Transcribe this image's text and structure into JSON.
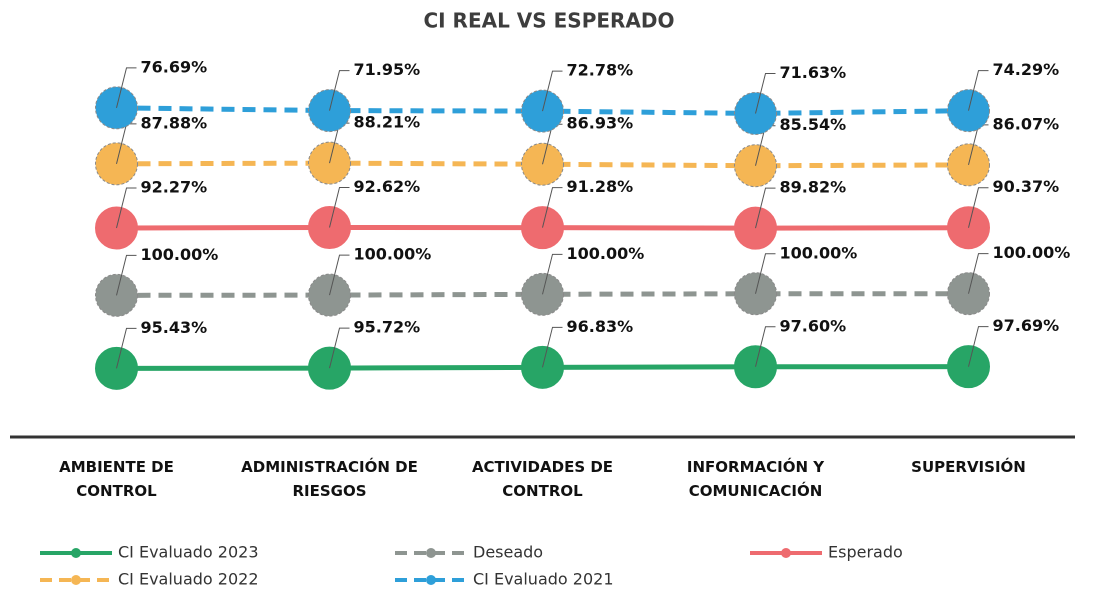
{
  "chart_data": {
    "type": "line",
    "stacked": true,
    "title": "CI REAL VS ESPERADO",
    "categories": [
      "AMBIENTE DE CONTROL",
      "ADMINISTRACIÓN DE RIESGOS",
      "ACTIVIDADES DE CONTROL",
      "INFORMACIÓN Y COMUNICACIÓN",
      "SUPERVISIÓN"
    ],
    "ylim": [
      0,
      500
    ],
    "legend": "bottom",
    "series": [
      {
        "name": "CI Evaluado 2023",
        "color": "#27a566",
        "dashed": false,
        "values": [
          95.43,
          95.72,
          96.83,
          97.6,
          97.69
        ],
        "value_labels": [
          "95.43%",
          "95.72%",
          "96.83%",
          "97.60%",
          "97.69%"
        ]
      },
      {
        "name": "Deseado",
        "color": "#8e9591",
        "dashed": true,
        "values": [
          100.0,
          100.0,
          100.0,
          100.0,
          100.0
        ],
        "value_labels": [
          "100.00%",
          "100.00%",
          "100.00%",
          "100.00%",
          "100.00%"
        ]
      },
      {
        "name": "Esperado",
        "color": "#ee6b6f",
        "dashed": false,
        "values": [
          92.27,
          92.62,
          91.28,
          89.82,
          90.37
        ],
        "value_labels": [
          "92.27%",
          "92.62%",
          "91.28%",
          "89.82%",
          "90.37%"
        ]
      },
      {
        "name": "CI Evaluado 2022",
        "color": "#f5b654",
        "dashed": true,
        "values": [
          87.88,
          88.21,
          86.93,
          85.54,
          86.07
        ],
        "value_labels": [
          "87.88%",
          "88.21%",
          "86.93%",
          "85.54%",
          "86.07%"
        ]
      },
      {
        "name": "CI Evaluado 2021",
        "color": "#2e9fd9",
        "dashed": true,
        "values": [
          76.69,
          71.95,
          72.78,
          71.63,
          74.29
        ],
        "value_labels": [
          "76.69%",
          "71.95%",
          "72.78%",
          "71.63%",
          "74.29%"
        ]
      }
    ]
  }
}
